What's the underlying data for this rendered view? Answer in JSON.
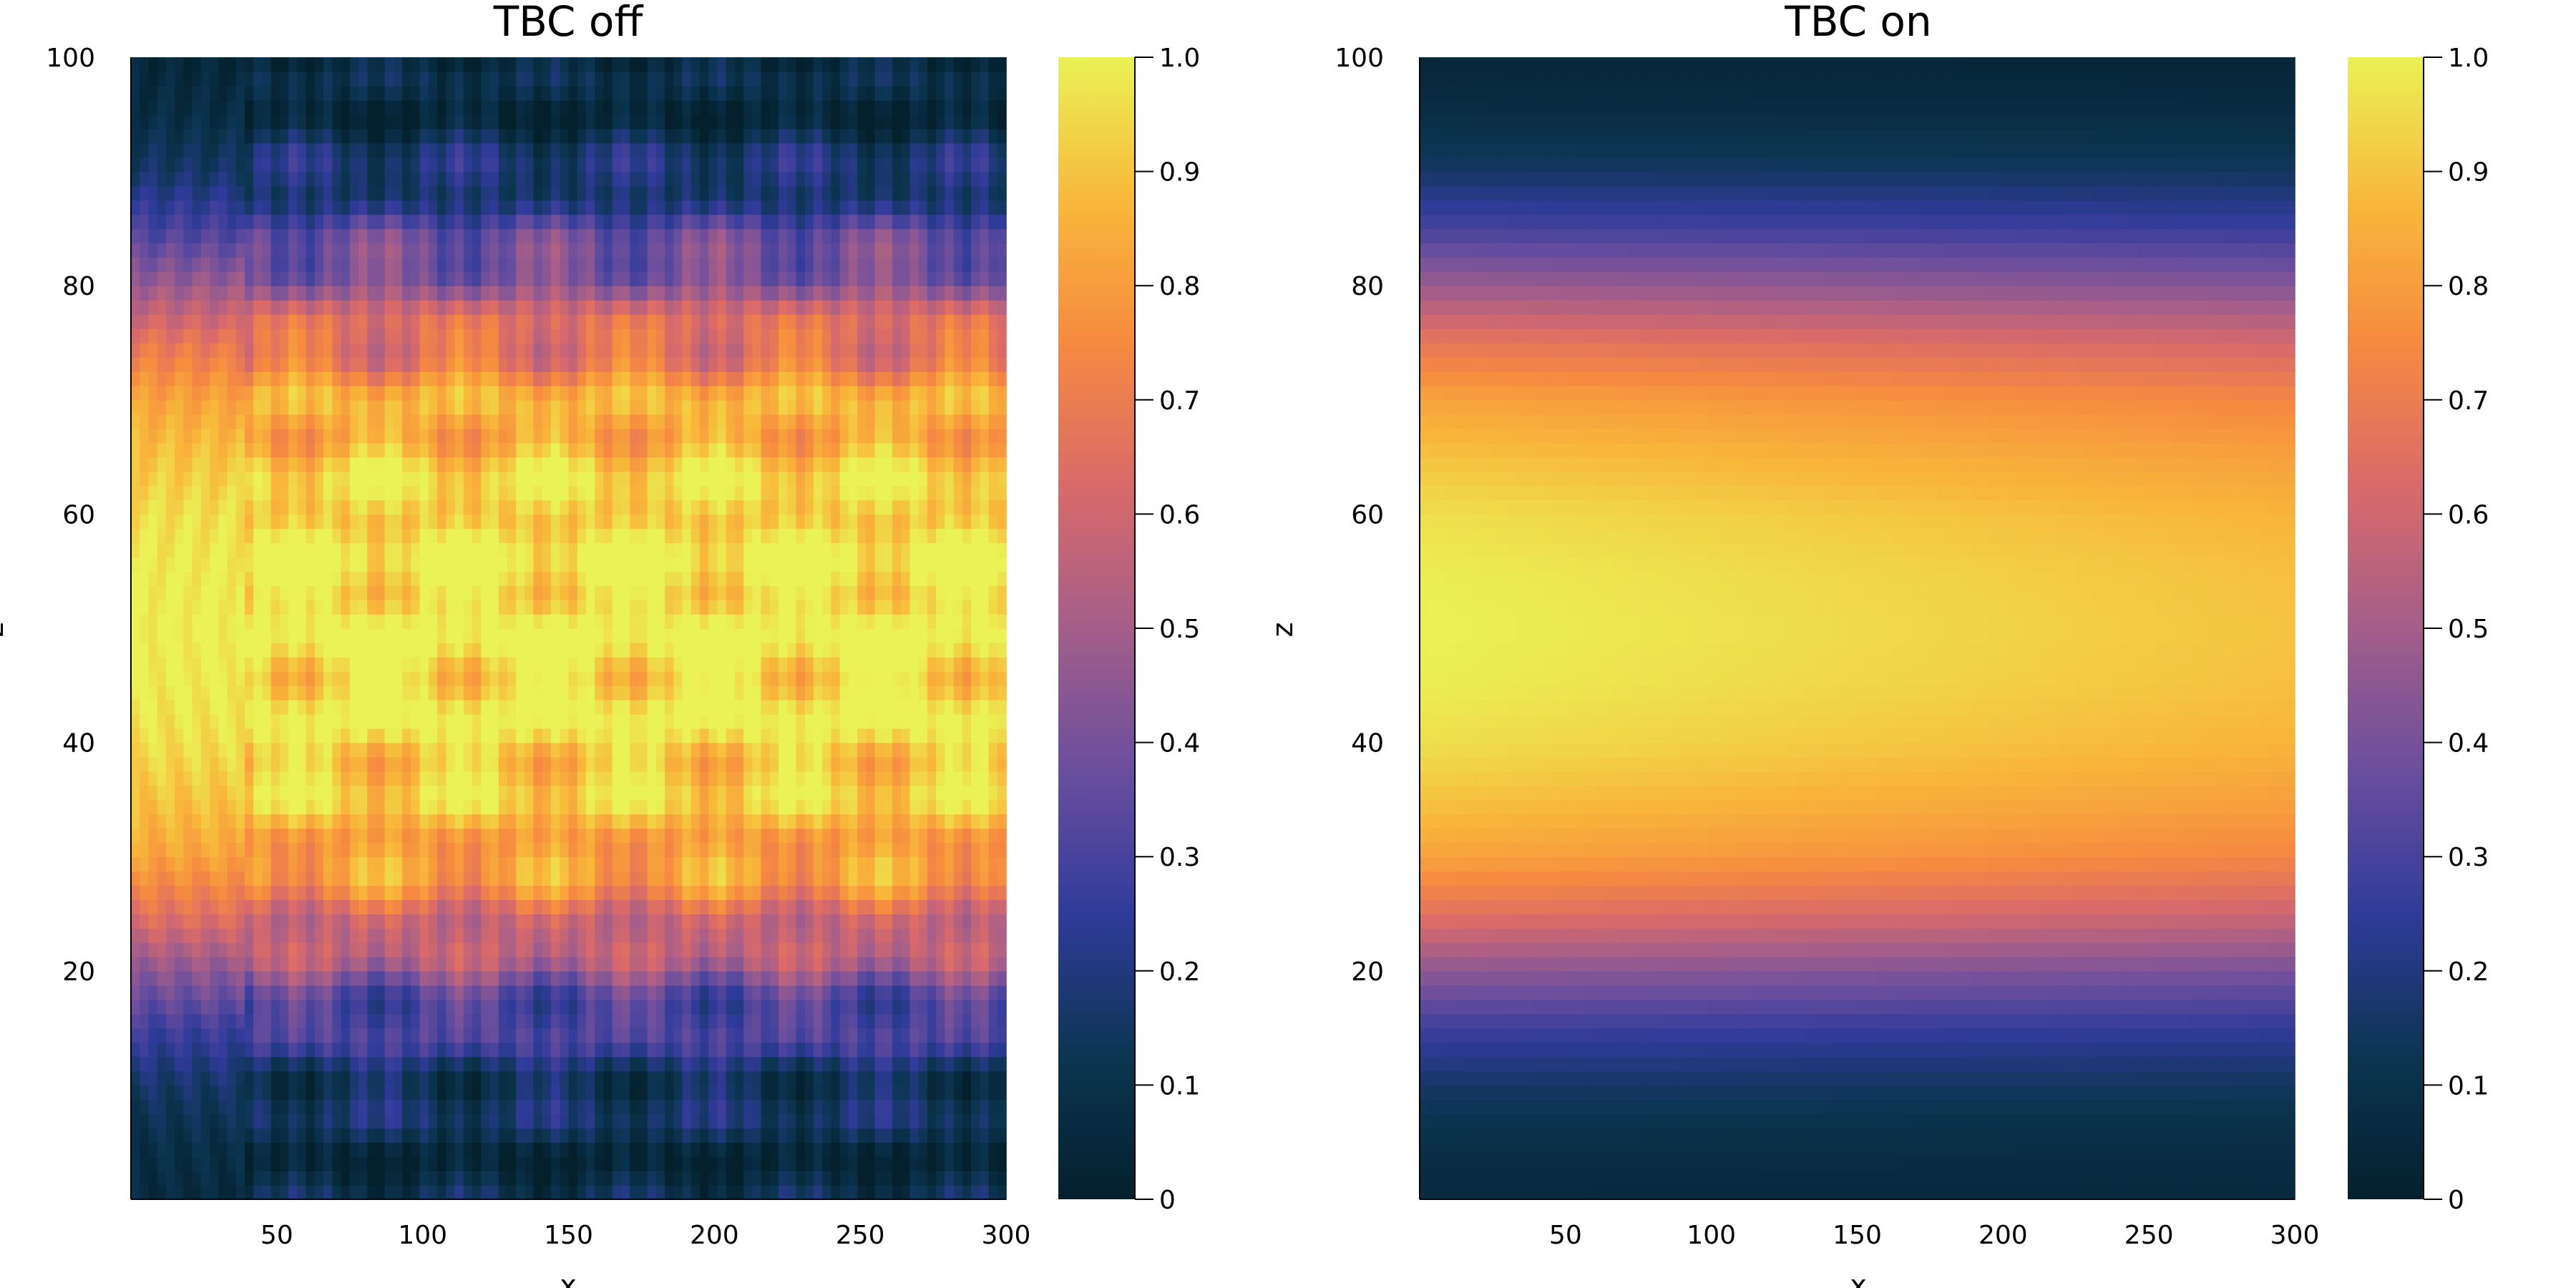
{
  "chart_data": [
    {
      "type": "heatmap",
      "title": "TBC off",
      "xlabel": "x",
      "ylabel": "z",
      "xlim": [
        0,
        300
      ],
      "ylim": [
        0,
        100
      ],
      "xticks": [
        "50",
        "100",
        "150",
        "200",
        "250",
        "300"
      ],
      "yticks": [
        "20",
        "40",
        "60",
        "80",
        "100"
      ],
      "colorbar": {
        "range": [
          0,
          1
        ],
        "ticks": [
          "0",
          "0.1",
          "0.2",
          "0.3",
          "0.4",
          "0.5",
          "0.6",
          "0.7",
          "0.8",
          "0.9",
          "1.0"
        ]
      },
      "colormap": [
        "#04202d",
        "#0c3552",
        "#303b9a",
        "#6a4e9e",
        "#a45e8a",
        "#d96a6a",
        "#f68a40",
        "#f8b83a",
        "#eaf255"
      ],
      "grid": false,
      "z_profile": [
        0.06,
        0.09,
        0.16,
        0.28,
        0.45,
        0.66,
        0.82,
        0.9,
        0.96,
        0.99,
        1.0,
        0.99,
        0.96,
        0.9,
        0.82,
        0.68,
        0.48,
        0.3,
        0.16,
        0.08,
        0.04
      ],
      "pattern": "interference"
    },
    {
      "type": "heatmap",
      "title": "TBC on",
      "xlabel": "x",
      "ylabel": "z",
      "xlim": [
        0,
        300
      ],
      "ylim": [
        0,
        100
      ],
      "xticks": [
        "50",
        "100",
        "150",
        "200",
        "250",
        "300"
      ],
      "yticks": [
        "20",
        "40",
        "60",
        "80",
        "100"
      ],
      "colorbar": {
        "range": [
          0,
          1
        ],
        "ticks": [
          "0",
          "0.1",
          "0.2",
          "0.3",
          "0.4",
          "0.5",
          "0.6",
          "0.7",
          "0.8",
          "0.9",
          "1.0"
        ]
      },
      "colormap": [
        "#04202d",
        "#0c3552",
        "#303b9a",
        "#6a4e9e",
        "#a45e8a",
        "#d96a6a",
        "#f68a40",
        "#f8b83a",
        "#eaf255"
      ],
      "grid": false,
      "z_profile": [
        0.06,
        0.09,
        0.16,
        0.28,
        0.45,
        0.66,
        0.82,
        0.9,
        0.96,
        0.99,
        1.0,
        0.99,
        0.96,
        0.9,
        0.82,
        0.68,
        0.48,
        0.3,
        0.16,
        0.08,
        0.04
      ],
      "pattern": "smooth"
    }
  ]
}
